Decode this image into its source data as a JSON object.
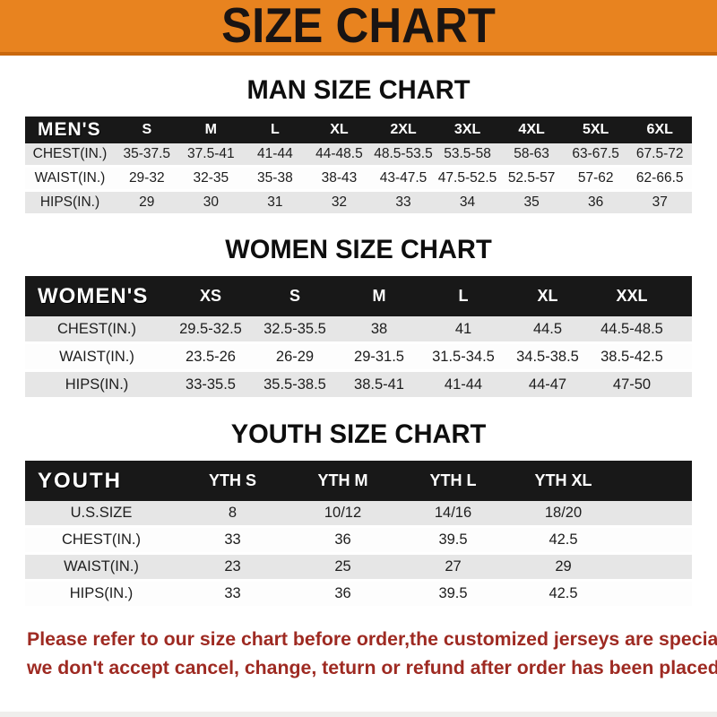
{
  "banner": {
    "title": "SIZE CHART"
  },
  "sections": [
    {
      "title": "MAN SIZE CHART",
      "table": {
        "header_label": "MEN'S",
        "columns": [
          "S",
          "M",
          "L",
          "XL",
          "2XL",
          "3XL",
          "4XL",
          "5XL",
          "6XL"
        ],
        "rows": [
          {
            "label": "CHEST(IN.)",
            "values": [
              "35-37.5",
              "37.5-41",
              "41-44",
              "44-48.5",
              "48.5-53.5",
              "53.5-58",
              "58-63",
              "63-67.5",
              "67.5-72"
            ]
          },
          {
            "label": "WAIST(IN.)",
            "values": [
              "29-32",
              "32-35",
              "35-38",
              "38-43",
              "43-47.5",
              "47.5-52.5",
              "52.5-57",
              "57-62",
              "62-66.5"
            ]
          },
          {
            "label": "HIPS(IN.)",
            "values": [
              "29",
              "30",
              "31",
              "32",
              "33",
              "34",
              "35",
              "36",
              "37"
            ]
          }
        ]
      }
    },
    {
      "title": "WOMEN SIZE CHART",
      "table": {
        "header_label": "WOMEN'S",
        "columns": [
          "XS",
          "S",
          "M",
          "L",
          "XL",
          "XXL"
        ],
        "rows": [
          {
            "label": "CHEST(IN.)",
            "values": [
              "29.5-32.5",
              "32.5-35.5",
              "38",
              "41",
              "44.5",
              "44.5-48.5"
            ]
          },
          {
            "label": "WAIST(IN.)",
            "values": [
              "23.5-26",
              "26-29",
              "29-31.5",
              "31.5-34.5",
              "34.5-38.5",
              "38.5-42.5"
            ]
          },
          {
            "label": "HIPS(IN.)",
            "values": [
              "33-35.5",
              "35.5-38.5",
              "38.5-41",
              "41-44",
              "44-47",
              "47-50"
            ]
          }
        ]
      }
    },
    {
      "title": "YOUTH SIZE CHART",
      "table": {
        "header_label": "YOUTH",
        "columns": [
          "YTH S",
          "YTH M",
          "YTH L",
          "YTH XL"
        ],
        "rows": [
          {
            "label": "U.S.SIZE",
            "values": [
              "8",
              "10/12",
              "14/16",
              "18/20"
            ]
          },
          {
            "label": "CHEST(IN.)",
            "values": [
              "33",
              "36",
              "39.5",
              "42.5"
            ]
          },
          {
            "label": "WAIST(IN.)",
            "values": [
              "23",
              "25",
              "27",
              "29"
            ]
          },
          {
            "label": "HIPS(IN.)",
            "values": [
              "33",
              "36",
              "39.5",
              "42.5"
            ]
          }
        ]
      }
    }
  ],
  "footer": {
    "line1": "Please refer to our size chart before order,the customized jerseys are special products,",
    "line2": "we don't accept cancel, change, teturn or refund after order has been placed!"
  },
  "colors": {
    "banner_bg": "#e8831f",
    "banner_border": "#c9680e",
    "header_bar": "#181818",
    "row_shaded": "#e6e6e6",
    "note_red": "#9e2a22"
  }
}
